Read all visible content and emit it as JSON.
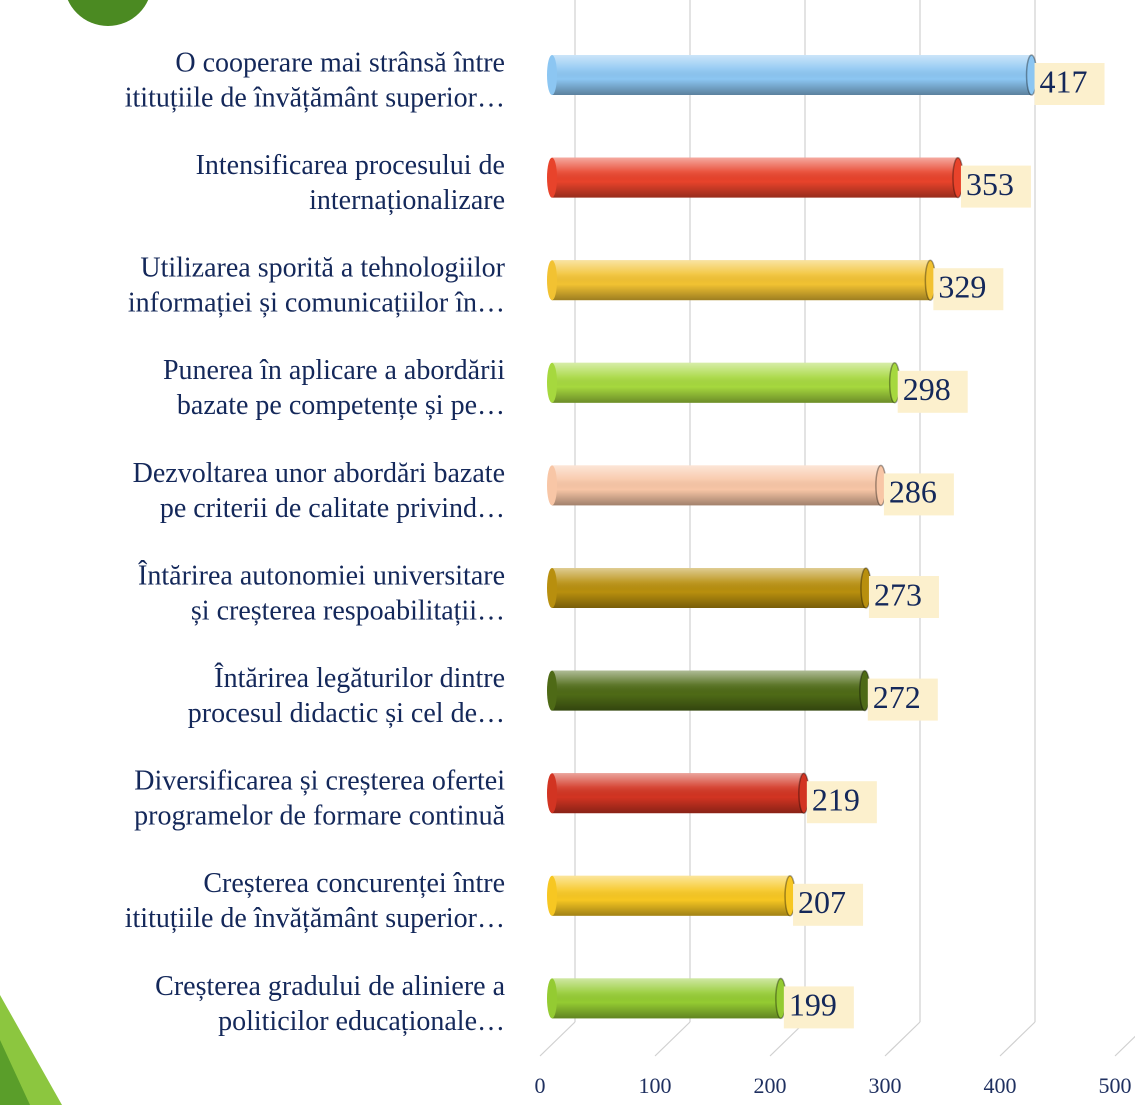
{
  "chart_data": {
    "type": "bar",
    "orientation": "horizontal",
    "categories": [
      [
        "O cooperare mai strânsă între",
        "itituțiile de învățământ superior…"
      ],
      [
        "Intensificarea procesului de",
        "internaționalizare"
      ],
      [
        "Utilizarea sporită a tehnologiilor",
        "informației și comunicațiilor în…"
      ],
      [
        "Punerea în aplicare a abordării",
        "bazate pe competențe și pe…"
      ],
      [
        "Dezvoltarea unor abordări bazate",
        "pe criterii de calitate privind…"
      ],
      [
        "Întărirea autonomiei universitare",
        "și creșterea respoabilitații…"
      ],
      [
        "Întărirea legăturilor dintre",
        "procesul didactic și cel de…"
      ],
      [
        "Diversificarea și creșterea ofertei",
        "programelor de formare continuă"
      ],
      [
        "Creșterea concurenței între",
        "itituțiile de învățământ superior…"
      ],
      [
        "Creșterea gradului de aliniere a",
        "politicilor educaționale…"
      ]
    ],
    "values": [
      417,
      353,
      329,
      298,
      286,
      273,
      272,
      219,
      207,
      199
    ],
    "colors": [
      "#8cc6f2",
      "#e8432b",
      "#f2c232",
      "#a6d83e",
      "#f8c6a6",
      "#b88f0e",
      "#4e6a16",
      "#d23422",
      "#f7c722",
      "#94cb32"
    ],
    "xlim": [
      0,
      500
    ],
    "xticks": [
      0,
      100,
      200,
      300,
      400,
      500
    ],
    "grid": true
  }
}
